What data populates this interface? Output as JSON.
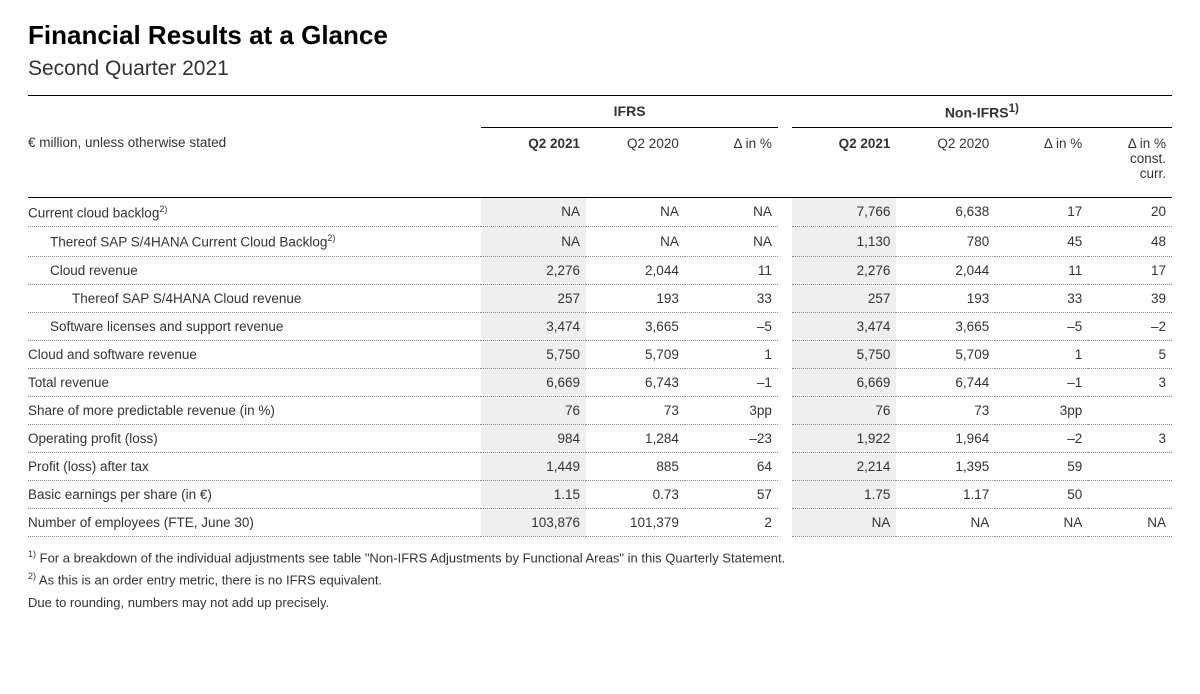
{
  "title": "Financial Results at a Glance",
  "subtitle": "Second Quarter 2021",
  "unitsLabel": "€ million, unless otherwise stated",
  "groupHeaders": {
    "ifrs": "IFRS",
    "nonifrs": "Non-IFRS",
    "nonifrs_sup": "1)"
  },
  "columnHeaders": {
    "q2_2021": "Q2 2021",
    "q2_2020": "Q2 2020",
    "delta": "Δ in %",
    "delta_cc_line1": "Δ in %",
    "delta_cc_line2": "const.",
    "delta_cc_line3": "curr."
  },
  "rows": [
    {
      "label": "Current cloud backlog",
      "sup": "2)",
      "indent": 0,
      "ifrs": {
        "cur": "NA",
        "prev": "NA",
        "delta": "NA"
      },
      "nonifrs": {
        "cur": "7,766",
        "prev": "6,638",
        "delta": "17",
        "cc": "20"
      }
    },
    {
      "label": "Thereof SAP S/4HANA Current Cloud Backlog",
      "sup": "2)",
      "indent": 1,
      "ifrs": {
        "cur": "NA",
        "prev": "NA",
        "delta": "NA"
      },
      "nonifrs": {
        "cur": "1,130",
        "prev": "780",
        "delta": "45",
        "cc": "48"
      }
    },
    {
      "label": "Cloud revenue",
      "sup": "",
      "indent": 1,
      "ifrs": {
        "cur": "2,276",
        "prev": "2,044",
        "delta": "11"
      },
      "nonifrs": {
        "cur": "2,276",
        "prev": "2,044",
        "delta": "11",
        "cc": "17"
      }
    },
    {
      "label": "Thereof SAP S/4HANA Cloud revenue",
      "sup": "",
      "indent": 2,
      "ifrs": {
        "cur": "257",
        "prev": "193",
        "delta": "33"
      },
      "nonifrs": {
        "cur": "257",
        "prev": "193",
        "delta": "33",
        "cc": "39"
      }
    },
    {
      "label": "Software licenses and support revenue",
      "sup": "",
      "indent": 1,
      "ifrs": {
        "cur": "3,474",
        "prev": "3,665",
        "delta": "–5"
      },
      "nonifrs": {
        "cur": "3,474",
        "prev": "3,665",
        "delta": "–5",
        "cc": "–2"
      }
    },
    {
      "label": "Cloud and software revenue",
      "sup": "",
      "indent": 0,
      "ifrs": {
        "cur": "5,750",
        "prev": "5,709",
        "delta": "1"
      },
      "nonifrs": {
        "cur": "5,750",
        "prev": "5,709",
        "delta": "1",
        "cc": "5"
      }
    },
    {
      "label": "Total revenue",
      "sup": "",
      "indent": 0,
      "ifrs": {
        "cur": "6,669",
        "prev": "6,743",
        "delta": "–1"
      },
      "nonifrs": {
        "cur": "6,669",
        "prev": "6,744",
        "delta": "–1",
        "cc": "3"
      }
    },
    {
      "label": "Share of more predictable revenue (in %)",
      "sup": "",
      "indent": 0,
      "ifrs": {
        "cur": "76",
        "prev": "73",
        "delta": "3pp"
      },
      "nonifrs": {
        "cur": "76",
        "prev": "73",
        "delta": "3pp",
        "cc": ""
      }
    },
    {
      "label": "Operating profit (loss)",
      "sup": "",
      "indent": 0,
      "ifrs": {
        "cur": "984",
        "prev": "1,284",
        "delta": "–23"
      },
      "nonifrs": {
        "cur": "1,922",
        "prev": "1,964",
        "delta": "–2",
        "cc": "3"
      }
    },
    {
      "label": "Profit (loss) after tax",
      "sup": "",
      "indent": 0,
      "ifrs": {
        "cur": "1,449",
        "prev": "885",
        "delta": "64"
      },
      "nonifrs": {
        "cur": "2,214",
        "prev": "1,395",
        "delta": "59",
        "cc": ""
      }
    },
    {
      "label": "Basic earnings per share (in €)",
      "sup": "",
      "indent": 0,
      "ifrs": {
        "cur": "1.15",
        "prev": "0.73",
        "delta": "57"
      },
      "nonifrs": {
        "cur": "1.75",
        "prev": "1.17",
        "delta": "50",
        "cc": ""
      }
    },
    {
      "label": "Number of employees (FTE, June 30)",
      "sup": "",
      "indent": 0,
      "ifrs": {
        "cur": "103,876",
        "prev": "101,379",
        "delta": "2"
      },
      "nonifrs": {
        "cur": "NA",
        "prev": "NA",
        "delta": "NA",
        "cc": "NA"
      }
    }
  ],
  "footnotes": {
    "n1_sup": "1)",
    "n1": " For a breakdown of the individual adjustments see table \"Non-IFRS Adjustments by Functional Areas\" in this Quarterly Statement.",
    "n2_sup": "2)",
    "n2": " As this is an order entry metric, there is no IFRS equivalent.",
    "rounding": "Due to rounding, numbers may not add up precisely."
  },
  "style": {
    "text_color": "#333333",
    "heading_color": "#000000",
    "highlight_bg": "#efefef",
    "border_color": "#000000",
    "dotted_color": "#888888",
    "font_family": "Arial, Helvetica, sans-serif"
  }
}
